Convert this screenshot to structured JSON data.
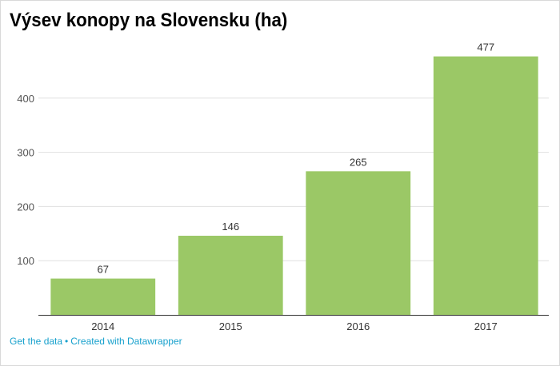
{
  "chart_data": {
    "type": "bar",
    "title": "Výsev konopy na Slovensku (ha)",
    "categories": [
      "2014",
      "2015",
      "2016",
      "2017"
    ],
    "values": [
      67,
      146,
      265,
      477
    ],
    "ylim": [
      0,
      500
    ],
    "yticks": [
      100,
      200,
      300,
      400
    ],
    "grid": true,
    "bar_color": "#9bc866",
    "xlabel": "",
    "ylabel": ""
  },
  "footer": {
    "get_data": "Get the data",
    "separator": "•",
    "created_with": "Created with Datawrapper"
  },
  "colors": {
    "link": "#18a1cd",
    "grid": "#e0e0e0",
    "axis": "#333333"
  }
}
